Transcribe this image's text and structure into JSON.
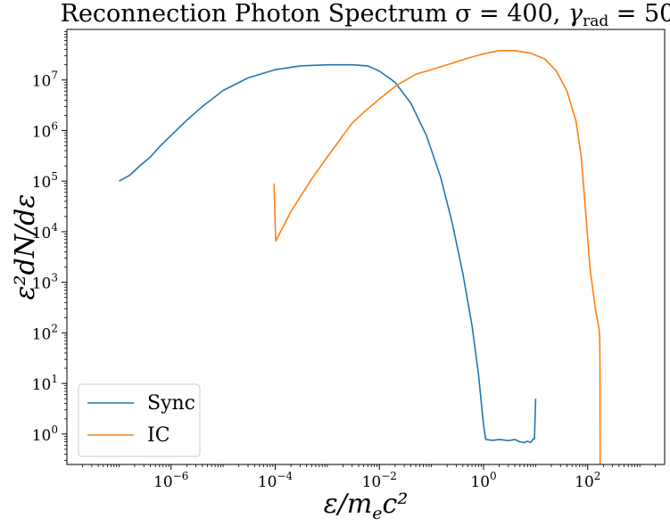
{
  "chart_data": {
    "type": "line",
    "title": "Reconnection Photon Spectrum σ = 400, γrad = 50",
    "xlabel": "ε/mec²",
    "ylabel": "ε²dN/dε",
    "xscale": "log",
    "yscale": "log",
    "xlim": [
      1e-08,
      3000
    ],
    "ylim": [
      0.25,
      100000000.0
    ],
    "grid": false,
    "legend_position": "lower-left",
    "x_ticks": [
      {
        "value": 1e-06,
        "base": "10",
        "exp": "−6"
      },
      {
        "value": 0.0001,
        "base": "10",
        "exp": "−4"
      },
      {
        "value": 0.01,
        "base": "10",
        "exp": "−2"
      },
      {
        "value": 1,
        "base": "10",
        "exp": "0"
      },
      {
        "value": 100,
        "base": "10",
        "exp": "2"
      }
    ],
    "y_ticks": [
      {
        "value": 1,
        "base": "10",
        "exp": "0"
      },
      {
        "value": 10,
        "base": "10",
        "exp": "1"
      },
      {
        "value": 100,
        "base": "10",
        "exp": "2"
      },
      {
        "value": 1000.0,
        "base": "10",
        "exp": "3"
      },
      {
        "value": 10000.0,
        "base": "10",
        "exp": "4"
      },
      {
        "value": 100000.0,
        "base": "10",
        "exp": "5"
      },
      {
        "value": 1000000.0,
        "base": "10",
        "exp": "6"
      },
      {
        "value": 10000000.0,
        "base": "10",
        "exp": "7"
      }
    ],
    "series": [
      {
        "name": "Sync",
        "color": "#1f77b4",
        "points": [
          [
            1e-07,
            100000.0
          ],
          [
            1.6e-07,
            130000.0
          ],
          [
            2.5e-07,
            200000.0
          ],
          [
            4e-07,
            300000.0
          ],
          [
            6e-07,
            480000.0
          ],
          [
            1e-06,
            800000.0
          ],
          [
            2e-06,
            1600000.0
          ],
          [
            4e-06,
            3000000.0
          ],
          [
            1e-05,
            6200000.0
          ],
          [
            3e-05,
            11000000.0
          ],
          [
            0.0001,
            16000000.0
          ],
          [
            0.0003,
            19000000.0
          ],
          [
            0.001,
            20000000.0
          ],
          [
            0.003,
            20000000.0
          ],
          [
            0.006,
            19000000.0
          ],
          [
            0.01,
            15000000.0
          ],
          [
            0.02,
            9000000.0
          ],
          [
            0.04,
            3500000.0
          ],
          [
            0.08,
            800000.0
          ],
          [
            0.15,
            120000.0
          ],
          [
            0.25,
            15000.0
          ],
          [
            0.4,
            1500.0
          ],
          [
            0.6,
            140
          ],
          [
            0.8,
            15
          ],
          [
            1.0,
            1.5
          ],
          [
            1.1,
            0.78
          ],
          [
            1.5,
            0.75
          ],
          [
            2.0,
            0.78
          ],
          [
            3.0,
            0.74
          ],
          [
            4.0,
            0.78
          ],
          [
            5.0,
            0.7
          ],
          [
            6.0,
            0.68
          ],
          [
            7.0,
            0.72
          ],
          [
            8.0,
            0.68
          ],
          [
            9.0,
            0.8
          ],
          [
            9.5,
            0.8
          ],
          [
            10.0,
            5.0
          ]
        ]
      },
      {
        "name": "IC",
        "color": "#ff7f0e",
        "points": [
          [
            9.5e-05,
            90000.0
          ],
          [
            0.000102,
            6500.0
          ],
          [
            0.0002,
            25000.0
          ],
          [
            0.0005,
            110000.0
          ],
          [
            0.001,
            300000.0
          ],
          [
            0.002,
            800000.0
          ],
          [
            0.003,
            1400000.0
          ],
          [
            0.005,
            2300000.0
          ],
          [
            0.01,
            4200000.0
          ],
          [
            0.02,
            7500000.0
          ],
          [
            0.05,
            13000000.0
          ],
          [
            0.1,
            16000000.0
          ],
          [
            0.2,
            20000000.0
          ],
          [
            0.5,
            27000000.0
          ],
          [
            1,
            33000000.0
          ],
          [
            2,
            38000000.0
          ],
          [
            4,
            38000000.0
          ],
          [
            8,
            34000000.0
          ],
          [
            15,
            26000000.0
          ],
          [
            25,
            15000000.0
          ],
          [
            40,
            6000000.0
          ],
          [
            60,
            1500000.0
          ],
          [
            75,
            300000.0
          ],
          [
            90,
            30000.0
          ],
          [
            110,
            2000.0
          ],
          [
            140,
            300
          ],
          [
            165,
            120
          ],
          [
            170,
            80
          ],
          [
            172,
            20
          ],
          [
            173,
            0.25
          ]
        ]
      }
    ]
  }
}
